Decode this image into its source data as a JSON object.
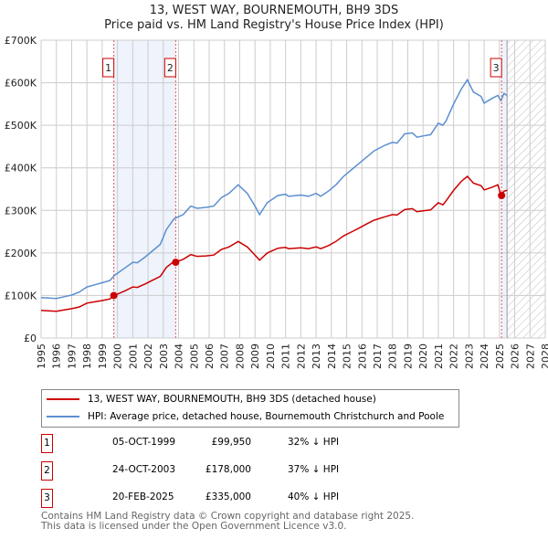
{
  "title_line1": "13, WEST WAY, BOURNEMOUTH, BH9 3DS",
  "title_line2": "Price paid vs. HM Land Registry's House Price Index (HPI)",
  "chart_data": {
    "type": "line",
    "title": "13, WEST WAY, BOURNEMOUTH, BH9 3DS — Price paid vs. HM Land Registry's House Price Index (HPI)",
    "xlim": [
      1995,
      2028
    ],
    "ylim": [
      0,
      700000
    ],
    "x_ticks": [
      "1995",
      "1996",
      "1997",
      "1998",
      "1999",
      "2000",
      "2001",
      "2002",
      "2003",
      "2004",
      "2005",
      "2006",
      "2007",
      "2008",
      "2009",
      "2010",
      "2011",
      "2012",
      "2013",
      "2014",
      "2015",
      "2016",
      "2017",
      "2018",
      "2019",
      "2020",
      "2021",
      "2022",
      "2023",
      "2024",
      "2025",
      "2026",
      "2027",
      "2028"
    ],
    "y_ticks": [
      {
        "v": 0,
        "label": "£0"
      },
      {
        "v": 100000,
        "label": "£100K"
      },
      {
        "v": 200000,
        "label": "£200K"
      },
      {
        "v": 300000,
        "label": "£300K"
      },
      {
        "v": 400000,
        "label": "£400K"
      },
      {
        "v": 500000,
        "label": "£500K"
      },
      {
        "v": 600000,
        "label": "£600K"
      },
      {
        "v": 700000,
        "label": "£700K"
      }
    ],
    "grid": true,
    "x": [
      1995.0,
      1996.0,
      1996.5,
      1997.0,
      1997.5,
      1998.0,
      1998.5,
      1999.0,
      1999.5,
      1999.8,
      2000.5,
      2001.0,
      2001.3,
      2001.8,
      2002.3,
      2002.8,
      2003.2,
      2003.7,
      2003.8,
      2004.3,
      2004.8,
      2005.2,
      2005.8,
      2006.3,
      2006.8,
      2007.3,
      2007.9,
      2008.5,
      2009.0,
      2009.3,
      2009.8,
      2010.5,
      2011.0,
      2011.2,
      2012.0,
      2012.5,
      2013.0,
      2013.3,
      2013.8,
      2014.3,
      2014.8,
      2015.3,
      2015.8,
      2016.3,
      2016.8,
      2017.5,
      2018.0,
      2018.3,
      2018.8,
      2019.3,
      2019.6,
      2020.0,
      2020.5,
      2021.0,
      2021.3,
      2021.5,
      2022.0,
      2022.5,
      2022.9,
      2023.3,
      2023.8,
      2024.0,
      2024.5,
      2024.9,
      2025.1,
      2025.3,
      2025.5
    ],
    "series": [
      {
        "name": "13, WEST WAY, BOURNEMOUTH, BH9 3DS (detached house)",
        "color": "#cc0000",
        "values": [
          65000,
          63000,
          66000,
          69000,
          73000,
          82000,
          85000,
          88000,
          92000,
          100000,
          111000,
          120000,
          119000,
          127000,
          136000,
          145000,
          166000,
          180000,
          178000,
          185000,
          196000,
          192000,
          193000,
          195000,
          208000,
          214000,
          227000,
          214000,
          195000,
          183000,
          200000,
          211000,
          213000,
          210000,
          212000,
          210000,
          214000,
          210000,
          217000,
          227000,
          240000,
          249000,
          258000,
          268000,
          277000,
          285000,
          290000,
          289000,
          302000,
          304000,
          297000,
          299000,
          301000,
          318000,
          313000,
          322000,
          347000,
          368000,
          380000,
          364000,
          358000,
          348000,
          354000,
          360000,
          335000,
          345000,
          347000
        ]
      },
      {
        "name": "HPI: Average price, detached house, Bournemouth Christchurch and Poole",
        "color": "#5b8fd0",
        "values": [
          95000,
          93000,
          97000,
          101000,
          108000,
          120000,
          125000,
          130000,
          135000,
          147000,
          165000,
          178000,
          177000,
          190000,
          205000,
          220000,
          255000,
          280000,
          282000,
          290000,
          310000,
          305000,
          307000,
          310000,
          330000,
          340000,
          360000,
          340000,
          310000,
          290000,
          318000,
          335000,
          338000,
          333000,
          336000,
          333000,
          340000,
          333000,
          345000,
          360000,
          380000,
          395000,
          410000,
          425000,
          440000,
          453000,
          460000,
          458000,
          480000,
          482000,
          472000,
          475000,
          478000,
          505000,
          500000,
          510000,
          550000,
          585000,
          607000,
          578000,
          568000,
          552000,
          563000,
          570000,
          558000,
          575000,
          570000
        ]
      }
    ],
    "sales": [
      {
        "num": "1",
        "x": 1999.76,
        "price": 99950
      },
      {
        "num": "2",
        "x": 2003.81,
        "price": 178000
      },
      {
        "num": "3",
        "x": 2025.14,
        "price": 335000
      }
    ],
    "forecast_hatch_from": 2025.5
  },
  "legend": [
    {
      "label": "13, WEST WAY, BOURNEMOUTH, BH9 3DS (detached house)",
      "color": "#cc0000"
    },
    {
      "label": "HPI: Average price, detached house, Bournemouth Christchurch and Poole",
      "color": "#5b8fd0"
    }
  ],
  "transactions": [
    {
      "num": "1",
      "date": "05-OCT-1999",
      "price": "£99,950",
      "hpi": "32% ↓ HPI"
    },
    {
      "num": "2",
      "date": "24-OCT-2003",
      "price": "£178,000",
      "hpi": "37% ↓ HPI"
    },
    {
      "num": "3",
      "date": "20-FEB-2025",
      "price": "£335,000",
      "hpi": "40% ↓ HPI"
    }
  ],
  "footer_line1": "Contains HM Land Registry data © Crown copyright and database right 2025.",
  "footer_line2": "This data is licensed under the Open Government Licence v3.0."
}
